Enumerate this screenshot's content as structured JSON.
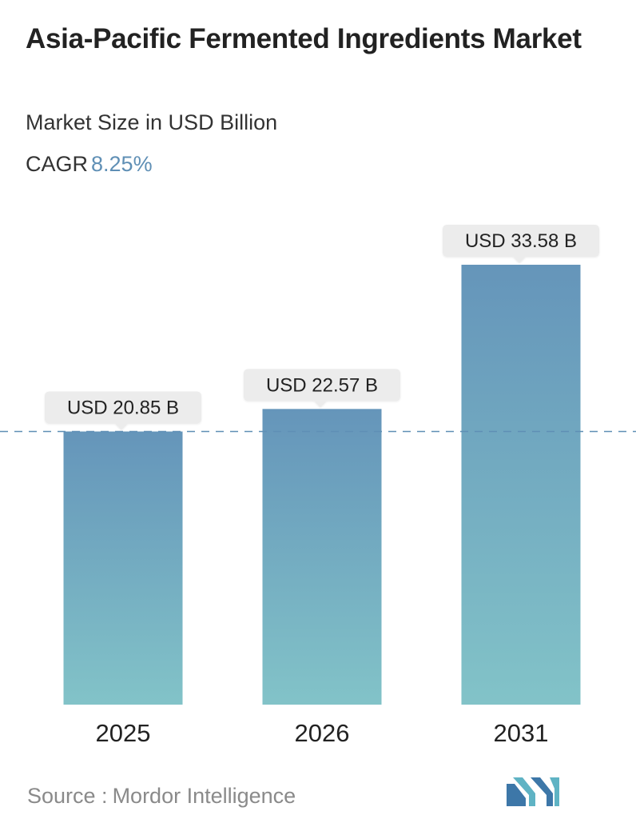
{
  "header": {
    "title": "Asia-Pacific Fermented Ingredients Market",
    "subtitle": "Market Size in USD Billion",
    "cagr_label": "CAGR",
    "cagr_value": "8.25%"
  },
  "chart_data": {
    "type": "bar",
    "categories": [
      "2025",
      "2026",
      "2031"
    ],
    "values": [
      20.85,
      22.57,
      33.58
    ],
    "data_labels": [
      "USD 20.85 B",
      "USD 22.57 B",
      "USD 33.58 B"
    ],
    "ylabel": "Market Size in USD Billion",
    "ylim": [
      0,
      33.58
    ],
    "reference_line_value": 20.85,
    "grid": false,
    "bar_color_top": "#6595ba",
    "bar_color_bottom": "#82c3c8",
    "label_box_color": "#ececec"
  },
  "footer": {
    "source_label": "Source :",
    "source_name": "Mordor Intelligence",
    "logo_icon": "mordor-intelligence-logo-icon"
  }
}
